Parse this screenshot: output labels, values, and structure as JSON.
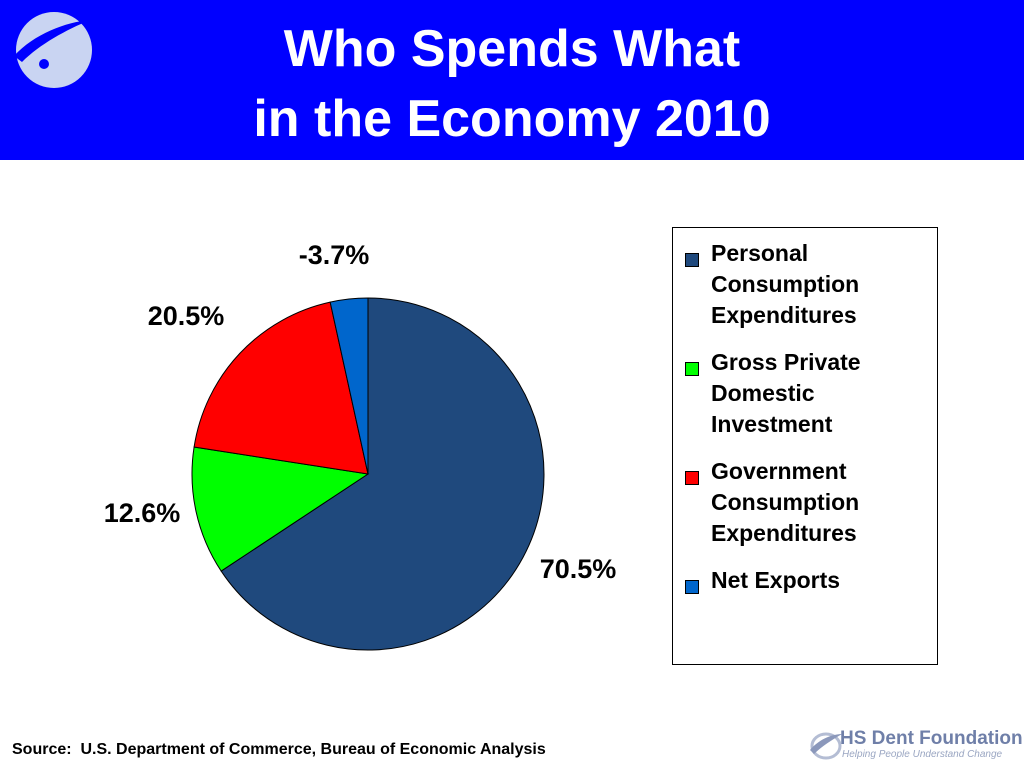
{
  "header": {
    "title_line1": "Who Spends What",
    "title_line2": "in the Economy 2010",
    "background": "#0000ff",
    "logo_icon": "hs-dent-swoosh-logo-icon"
  },
  "chart_data": {
    "type": "pie",
    "title": "Who Spends What in the Economy 2010",
    "slices": [
      {
        "name": "Personal Consumption Expenditures",
        "value": 70.5,
        "label": "70.5%",
        "color": "#1f497d"
      },
      {
        "name": "Gross Private Domestic Investment",
        "value": 12.6,
        "label": "12.6%",
        "color": "#00ff00"
      },
      {
        "name": "Government Consumption Expenditures",
        "value": 20.5,
        "label": "20.5%",
        "color": "#ff0000"
      },
      {
        "name": "Net Exports",
        "value": -3.7,
        "label": "-3.7%",
        "color": "#0066cc"
      }
    ],
    "legend": {
      "position": "right",
      "entries": [
        "Personal\nConsumption\nExpenditures",
        "Gross Private\nDomestic\nInvestment",
        "Government\nConsumption\nExpenditures",
        "Net Exports"
      ]
    }
  },
  "footer": {
    "source": "Source:  U.S. Department of Commerce, Bureau of Economic Analysis",
    "org_name": "HS Dent Foundation",
    "org_tagline": "Helping People Understand Change",
    "org_logo_icon": "hs-dent-foundation-logo-icon"
  }
}
